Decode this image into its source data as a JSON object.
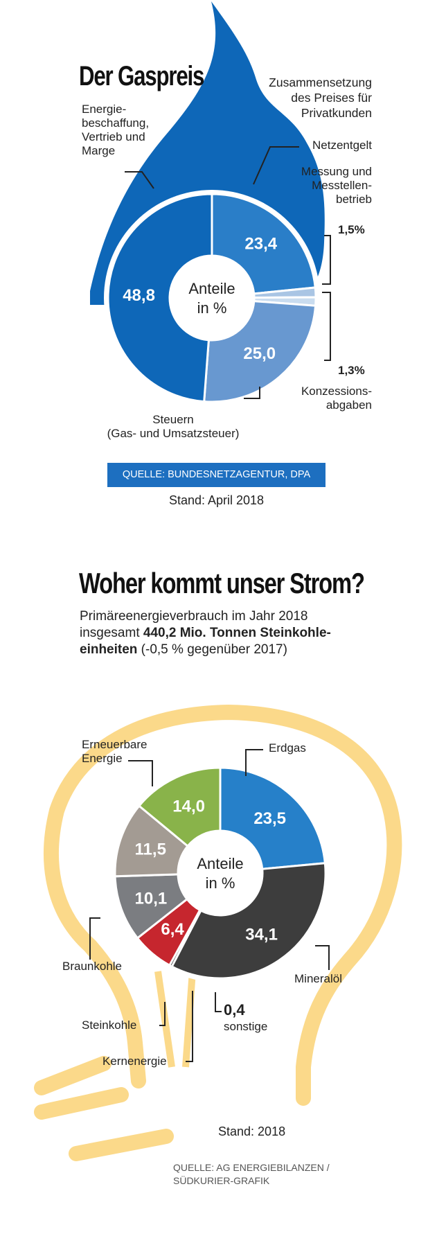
{
  "colors": {
    "flame": "#0e67b8",
    "accent_blue": "#1d6fc0",
    "bulb": "#fbd98a",
    "gas_energy": "#0e67b8",
    "gas_network": "#2a7ec8",
    "gas_measure": "#a9c5e4",
    "gas_concession": "#c9dcef",
    "gas_tax": "#6898d0",
    "strom_erdgas": "#2680c9",
    "strom_mineraloel": "#3d3d3d",
    "strom_sonstige": "#111111",
    "strom_kern": "#c6262e",
    "strom_stein": "#7b7d81",
    "strom_braun": "#a39b93",
    "strom_erneuerbar": "#89b34a"
  },
  "gas": {
    "title": "Der Gaspreis",
    "subtitle": [
      "Zusammensetzung",
      "des Preises für",
      "Privatkunden"
    ],
    "center_label": [
      "Anteile",
      "in %"
    ],
    "labels": {
      "energy": [
        "Energie-",
        "beschaffung,",
        "Vertrieb und",
        "Marge"
      ],
      "network": "Netzentgelt",
      "measure": [
        "Messung und",
        "Messtellen-",
        "betrieb"
      ],
      "measure_value": "1,5%",
      "concession_value": "1,3%",
      "concession": [
        "Konzessions-",
        "abgaben"
      ],
      "tax": [
        "Steuern",
        "(Gas- und Umsatzsteuer)"
      ]
    },
    "source": "QUELLE: BUNDESNETZAGENTUR, DPA",
    "stand": "Stand: April 2018"
  },
  "strom": {
    "title": "Woher kommt unser Strom?",
    "sub_line1": "Primäreenergieverbrauch im Jahr 2018",
    "sub_line2_pre": "insgesamt ",
    "sub_line2_bold": "440,2 Mio. Tonnen Steinkohle-",
    "sub_line3_bold": "einheiten",
    "sub_line3_post": " (-0,5 % gegenüber 2017)",
    "center_label": [
      "Anteile",
      "in %"
    ],
    "labels": {
      "erneuerbar": [
        "Erneuerbare",
        "Energie"
      ],
      "erdgas": "Erdgas",
      "braun": "Braunkohle",
      "mineraloel": "Mineralöl",
      "stein": "Steinkohle",
      "kern": "Kernenergie",
      "sonstige_value": "0,4",
      "sonstige": "sonstige"
    },
    "stand": "Stand: 2018",
    "source": [
      "QUELLE: AG ENERGIEBILANZEN /",
      "SÜDKURIER-GRAFIK"
    ]
  },
  "chart_data": [
    {
      "type": "pie",
      "title": "Der Gaspreis",
      "subtitle": "Zusammensetzung des Preises für Privatkunden",
      "unit": "Anteile in %",
      "categories": [
        "Netzentgelt",
        "Messung und Messtellenbetrieb",
        "Konzessionsabgaben",
        "Steuern (Gas- und Umsatzsteuer)",
        "Energiebeschaffung, Vertrieb und Marge"
      ],
      "values": [
        23.4,
        1.5,
        1.3,
        25.0,
        48.8
      ],
      "value_labels": [
        "23,4",
        "1,5%",
        "1,3%",
        "25,0",
        "48,8"
      ]
    },
    {
      "type": "pie",
      "title": "Woher kommt unser Strom?",
      "subtitle": "Primäreenergieverbrauch im Jahr 2018",
      "unit": "Anteile in %",
      "categories": [
        "Erdgas",
        "Mineralöl",
        "sonstige",
        "Kernenergie",
        "Steinkohle",
        "Braunkohle",
        "Erneuerbare Energie"
      ],
      "values": [
        23.5,
        34.1,
        0.4,
        6.4,
        10.1,
        11.5,
        14.0
      ],
      "value_labels": [
        "23,5",
        "34,1",
        "0,4",
        "6,4",
        "10,1",
        "11,5",
        "14,0"
      ]
    }
  ]
}
